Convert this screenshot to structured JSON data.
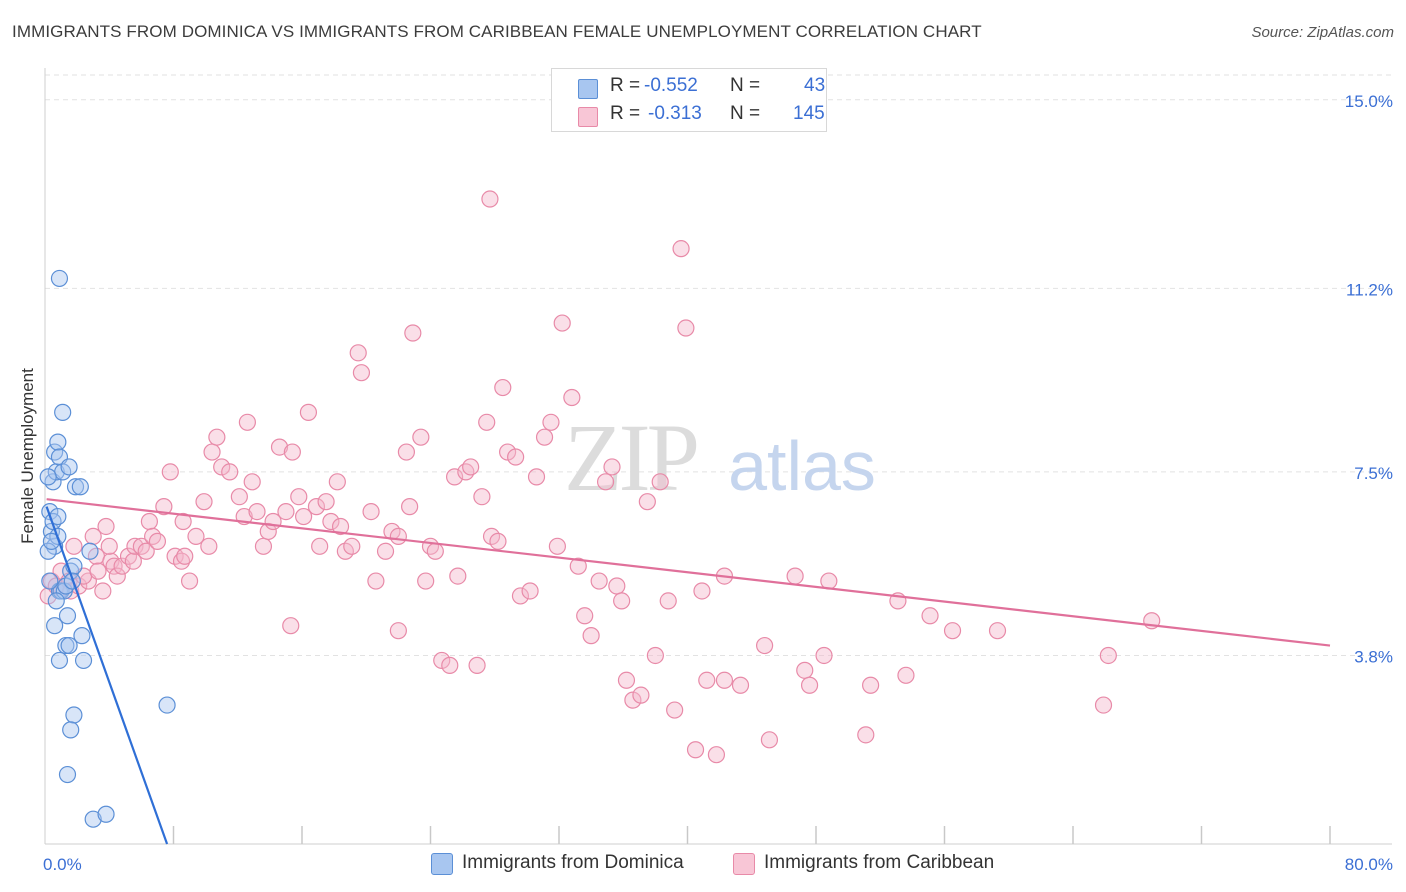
{
  "title": "IMMIGRANTS FROM DOMINICA VS IMMIGRANTS FROM CARIBBEAN FEMALE UNEMPLOYMENT CORRELATION CHART",
  "source": "Source: ZipAtlas.com",
  "watermark": {
    "zip": "ZIP",
    "atlas": "atlas"
  },
  "colors": {
    "blue_fill": "#a8c6f0",
    "blue_stroke": "#5b8fd6",
    "blue_line": "#2f6fd6",
    "pink_fill": "#f5b8cb",
    "pink_stroke": "#e88aa8",
    "pink_line": "#e0709a",
    "tick_label": "#3b6fd4",
    "grid": "#e2e2e2"
  },
  "legend": {
    "rows": [
      {
        "r_label": "R =",
        "r_value": "-0.552",
        "n_label": "N =",
        "n_value": "43"
      },
      {
        "r_label": "R =",
        "r_value": "-0.313",
        "n_label": "N =",
        "n_value": "145"
      }
    ]
  },
  "bottom_legend": {
    "series1": "Immigrants from Dominica",
    "series2": "Immigrants from Caribbean"
  },
  "chart_data": {
    "type": "scatter",
    "xlabel": "",
    "ylabel": "Female Unemployment",
    "xlim": [
      0,
      80
    ],
    "ylim": [
      0,
      15.5
    ],
    "x_tick_labels": [
      "0.0%",
      "80.0%"
    ],
    "y_ticks": [
      3.8,
      7.5,
      11.2,
      15.0
    ],
    "y_tick_labels": [
      "3.8%",
      "7.5%",
      "11.2%",
      "15.0%"
    ],
    "series": [
      {
        "name": "Immigrants from Dominica",
        "color": "#5b8fd6",
        "r": -0.552,
        "n": 43,
        "trend": {
          "x": [
            0.1,
            7.6
          ],
          "y": [
            6.8,
            0.0
          ]
        },
        "points": [
          [
            0.3,
            6.7
          ],
          [
            0.4,
            6.3
          ],
          [
            0.5,
            6.5
          ],
          [
            0.6,
            6.0
          ],
          [
            0.2,
            5.9
          ],
          [
            0.5,
            7.3
          ],
          [
            0.6,
            7.9
          ],
          [
            0.7,
            7.5
          ],
          [
            0.8,
            8.1
          ],
          [
            0.9,
            7.8
          ],
          [
            1.1,
            7.5
          ],
          [
            1.5,
            7.6
          ],
          [
            1.9,
            7.2
          ],
          [
            2.2,
            7.2
          ],
          [
            0.8,
            6.2
          ],
          [
            0.9,
            5.1
          ],
          [
            1.0,
            5.1
          ],
          [
            1.2,
            5.1
          ],
          [
            1.6,
            5.5
          ],
          [
            1.8,
            5.6
          ],
          [
            0.3,
            5.3
          ],
          [
            0.7,
            4.9
          ],
          [
            1.4,
            4.6
          ],
          [
            2.3,
            4.2
          ],
          [
            1.3,
            4.0
          ],
          [
            1.5,
            4.0
          ],
          [
            0.9,
            3.7
          ],
          [
            2.4,
            3.7
          ],
          [
            0.9,
            11.4
          ],
          [
            1.1,
            8.7
          ],
          [
            2.8,
            5.9
          ],
          [
            1.8,
            2.6
          ],
          [
            1.6,
            2.3
          ],
          [
            1.4,
            1.4
          ],
          [
            3.0,
            0.5
          ],
          [
            3.8,
            0.6
          ],
          [
            7.6,
            2.8
          ],
          [
            0.4,
            6.1
          ],
          [
            1.3,
            5.2
          ],
          [
            0.6,
            4.4
          ],
          [
            1.7,
            5.3
          ],
          [
            0.2,
            7.4
          ],
          [
            0.8,
            6.6
          ]
        ]
      },
      {
        "name": "Immigrants from Caribbean",
        "color": "#e88aa8",
        "r": -0.313,
        "n": 145,
        "trend": {
          "x": [
            0.1,
            80
          ],
          "y": [
            6.95,
            4.0
          ]
        },
        "points": [
          [
            0.2,
            5.0
          ],
          [
            0.4,
            5.3
          ],
          [
            0.7,
            5.2
          ],
          [
            1.0,
            5.5
          ],
          [
            1.5,
            5.3
          ],
          [
            1.6,
            5.1
          ],
          [
            2.1,
            5.2
          ],
          [
            2.7,
            5.3
          ],
          [
            3.0,
            6.2
          ],
          [
            3.2,
            5.8
          ],
          [
            3.6,
            5.1
          ],
          [
            3.8,
            6.4
          ],
          [
            4.1,
            5.7
          ],
          [
            4.3,
            5.6
          ],
          [
            4.5,
            5.4
          ],
          [
            4.8,
            5.6
          ],
          [
            5.2,
            5.8
          ],
          [
            5.5,
            5.7
          ],
          [
            5.6,
            6.0
          ],
          [
            6.0,
            6.0
          ],
          [
            6.3,
            5.9
          ],
          [
            6.5,
            6.5
          ],
          [
            6.7,
            6.2
          ],
          [
            7.0,
            6.1
          ],
          [
            7.4,
            6.8
          ],
          [
            7.8,
            7.5
          ],
          [
            8.1,
            5.8
          ],
          [
            8.5,
            5.7
          ],
          [
            8.7,
            5.8
          ],
          [
            9.0,
            5.3
          ],
          [
            9.4,
            6.2
          ],
          [
            9.9,
            6.9
          ],
          [
            10.2,
            6.0
          ],
          [
            10.4,
            7.9
          ],
          [
            10.7,
            8.2
          ],
          [
            11.0,
            7.6
          ],
          [
            11.5,
            7.5
          ],
          [
            12.1,
            7.0
          ],
          [
            12.4,
            6.6
          ],
          [
            12.6,
            8.5
          ],
          [
            12.9,
            7.3
          ],
          [
            13.2,
            6.7
          ],
          [
            13.6,
            6.0
          ],
          [
            13.9,
            6.3
          ],
          [
            14.2,
            6.5
          ],
          [
            14.6,
            8.0
          ],
          [
            15.0,
            6.7
          ],
          [
            15.4,
            7.9
          ],
          [
            15.8,
            7.0
          ],
          [
            16.1,
            6.6
          ],
          [
            16.4,
            8.7
          ],
          [
            16.9,
            6.8
          ],
          [
            17.1,
            6.0
          ],
          [
            17.5,
            6.9
          ],
          [
            17.8,
            6.5
          ],
          [
            18.2,
            7.3
          ],
          [
            18.4,
            6.4
          ],
          [
            18.7,
            5.9
          ],
          [
            19.1,
            6.0
          ],
          [
            19.5,
            9.9
          ],
          [
            19.7,
            9.5
          ],
          [
            20.3,
            6.7
          ],
          [
            20.6,
            5.3
          ],
          [
            21.2,
            5.9
          ],
          [
            21.6,
            6.3
          ],
          [
            22.0,
            6.2
          ],
          [
            22.5,
            7.9
          ],
          [
            22.7,
            6.8
          ],
          [
            22.9,
            10.3
          ],
          [
            23.4,
            8.2
          ],
          [
            23.7,
            5.3
          ],
          [
            24.0,
            6.0
          ],
          [
            24.3,
            5.9
          ],
          [
            24.7,
            3.7
          ],
          [
            25.2,
            3.6
          ],
          [
            25.5,
            7.4
          ],
          [
            25.7,
            5.4
          ],
          [
            26.2,
            7.5
          ],
          [
            26.5,
            7.6
          ],
          [
            26.9,
            3.6
          ],
          [
            27.2,
            7.0
          ],
          [
            27.5,
            8.5
          ],
          [
            27.8,
            6.2
          ],
          [
            28.2,
            6.1
          ],
          [
            28.5,
            9.2
          ],
          [
            28.8,
            7.9
          ],
          [
            29.3,
            7.8
          ],
          [
            29.6,
            5.0
          ],
          [
            30.2,
            5.1
          ],
          [
            30.6,
            7.4
          ],
          [
            31.1,
            8.2
          ],
          [
            31.5,
            8.5
          ],
          [
            31.9,
            6.0
          ],
          [
            32.2,
            10.5
          ],
          [
            32.8,
            9.0
          ],
          [
            33.2,
            5.6
          ],
          [
            33.6,
            4.6
          ],
          [
            34.0,
            4.2
          ],
          [
            34.5,
            5.3
          ],
          [
            34.9,
            7.3
          ],
          [
            35.3,
            7.6
          ],
          [
            35.6,
            5.2
          ],
          [
            35.9,
            4.9
          ],
          [
            36.2,
            3.3
          ],
          [
            36.6,
            2.9
          ],
          [
            37.1,
            3.0
          ],
          [
            37.5,
            6.9
          ],
          [
            38.0,
            3.8
          ],
          [
            38.3,
            7.3
          ],
          [
            38.8,
            4.9
          ],
          [
            39.2,
            2.7
          ],
          [
            39.6,
            12.0
          ],
          [
            39.9,
            10.4
          ],
          [
            40.5,
            1.9
          ],
          [
            40.9,
            5.1
          ],
          [
            41.2,
            3.3
          ],
          [
            41.8,
            1.8
          ],
          [
            42.3,
            5.4
          ],
          [
            43.3,
            3.2
          ],
          [
            44.8,
            4.0
          ],
          [
            45.1,
            2.1
          ],
          [
            46.7,
            5.4
          ],
          [
            47.3,
            3.5
          ],
          [
            47.6,
            3.2
          ],
          [
            48.5,
            3.8
          ],
          [
            48.8,
            5.3
          ],
          [
            51.1,
            2.2
          ],
          [
            51.4,
            3.2
          ],
          [
            53.1,
            4.9
          ],
          [
            53.6,
            3.4
          ],
          [
            55.1,
            4.6
          ],
          [
            56.5,
            4.3
          ],
          [
            59.3,
            4.3
          ],
          [
            65.9,
            2.8
          ],
          [
            66.2,
            3.8
          ],
          [
            68.9,
            4.5
          ],
          [
            15.3,
            4.4
          ],
          [
            22.0,
            4.3
          ],
          [
            27.7,
            13.0
          ],
          [
            42.3,
            3.3
          ],
          [
            2.4,
            5.4
          ],
          [
            4.0,
            6.0
          ],
          [
            8.6,
            6.5
          ],
          [
            1.8,
            6.0
          ],
          [
            3.3,
            5.5
          ]
        ]
      }
    ]
  }
}
